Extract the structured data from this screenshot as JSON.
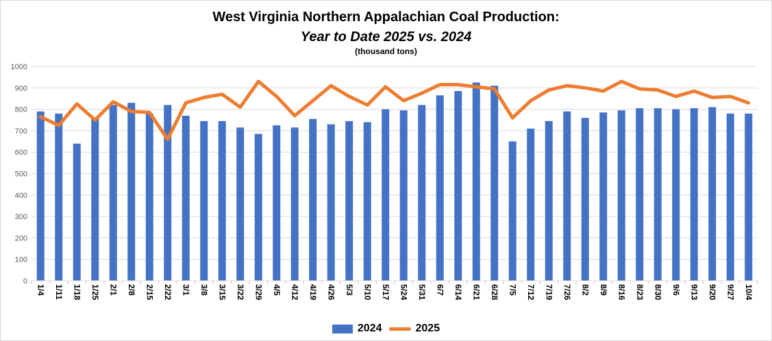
{
  "header": {
    "title": "West Virginia Northern Appalachian Coal Production:",
    "subtitle": "Year to Date 2025 vs. 2024",
    "units_note": "(thousand tons)"
  },
  "legend": {
    "items": [
      {
        "label": "2024",
        "swatch": "bar-swatch",
        "color": "#4472C4"
      },
      {
        "label": "2025",
        "swatch": "line-swatch",
        "color": "#ED7D31"
      }
    ]
  },
  "colors": {
    "bar": "#4472C4",
    "line": "#ED7D31",
    "gridline": "#D9D9D9",
    "axis_line": "#D9D9D9",
    "tick": "#C6C6C6",
    "y_label": "#595959",
    "x_label": "#000000",
    "background": "#FFFFFF",
    "frame": "#D9D9D9"
  },
  "y_axis": {
    "ticks": [
      1000,
      900,
      800,
      700,
      600,
      500,
      400,
      300,
      200,
      100,
      0
    ]
  },
  "chart_data": {
    "type": "combo",
    "title": "West Virginia Northern Appalachian Coal Production:",
    "subtitle": "Year to Date 2025 vs. 2024",
    "units": "thousand tons",
    "xlabel": "",
    "ylabel": "",
    "ylim": [
      0,
      1000
    ],
    "ytick_interval": 100,
    "grid": "horizontal",
    "legend_position": "bottom",
    "x_label_rotation_deg": 90,
    "categories": [
      "1/4",
      "1/11",
      "1/18",
      "1/25",
      "2/1",
      "2/8",
      "2/15",
      "2/22",
      "3/1",
      "3/8",
      "3/15",
      "3/22",
      "3/29",
      "4/5",
      "4/12",
      "4/19",
      "4/26",
      "5/3",
      "5/10",
      "5/17",
      "5/24",
      "5/31",
      "6/7",
      "6/14",
      "6/21",
      "6/28",
      "7/5",
      "7/12",
      "7/19",
      "7/26",
      "8/2",
      "8/9",
      "8/16",
      "8/23",
      "8/30",
      "9/6",
      "9/13",
      "9/20",
      "9/27",
      "10/4"
    ],
    "series": [
      {
        "name": "2024",
        "type": "bar",
        "color": "#4472C4",
        "values": [
          790,
          780,
          640,
          755,
          820,
          830,
          780,
          820,
          770,
          745,
          745,
          715,
          685,
          725,
          715,
          755,
          730,
          745,
          740,
          800,
          795,
          820,
          865,
          885,
          925,
          910,
          650,
          710,
          745,
          790,
          760,
          785,
          795,
          805,
          805,
          800,
          805,
          810,
          780,
          780
        ]
      },
      {
        "name": "2025",
        "type": "line",
        "color": "#ED7D31",
        "values": [
          765,
          725,
          825,
          750,
          835,
          790,
          785,
          660,
          830,
          855,
          870,
          810,
          930,
          860,
          770,
          840,
          910,
          860,
          820,
          905,
          840,
          875,
          915,
          915,
          905,
          895,
          760,
          840,
          890,
          910,
          900,
          885,
          930,
          895,
          890,
          860,
          885,
          855,
          860,
          830
        ]
      }
    ]
  }
}
